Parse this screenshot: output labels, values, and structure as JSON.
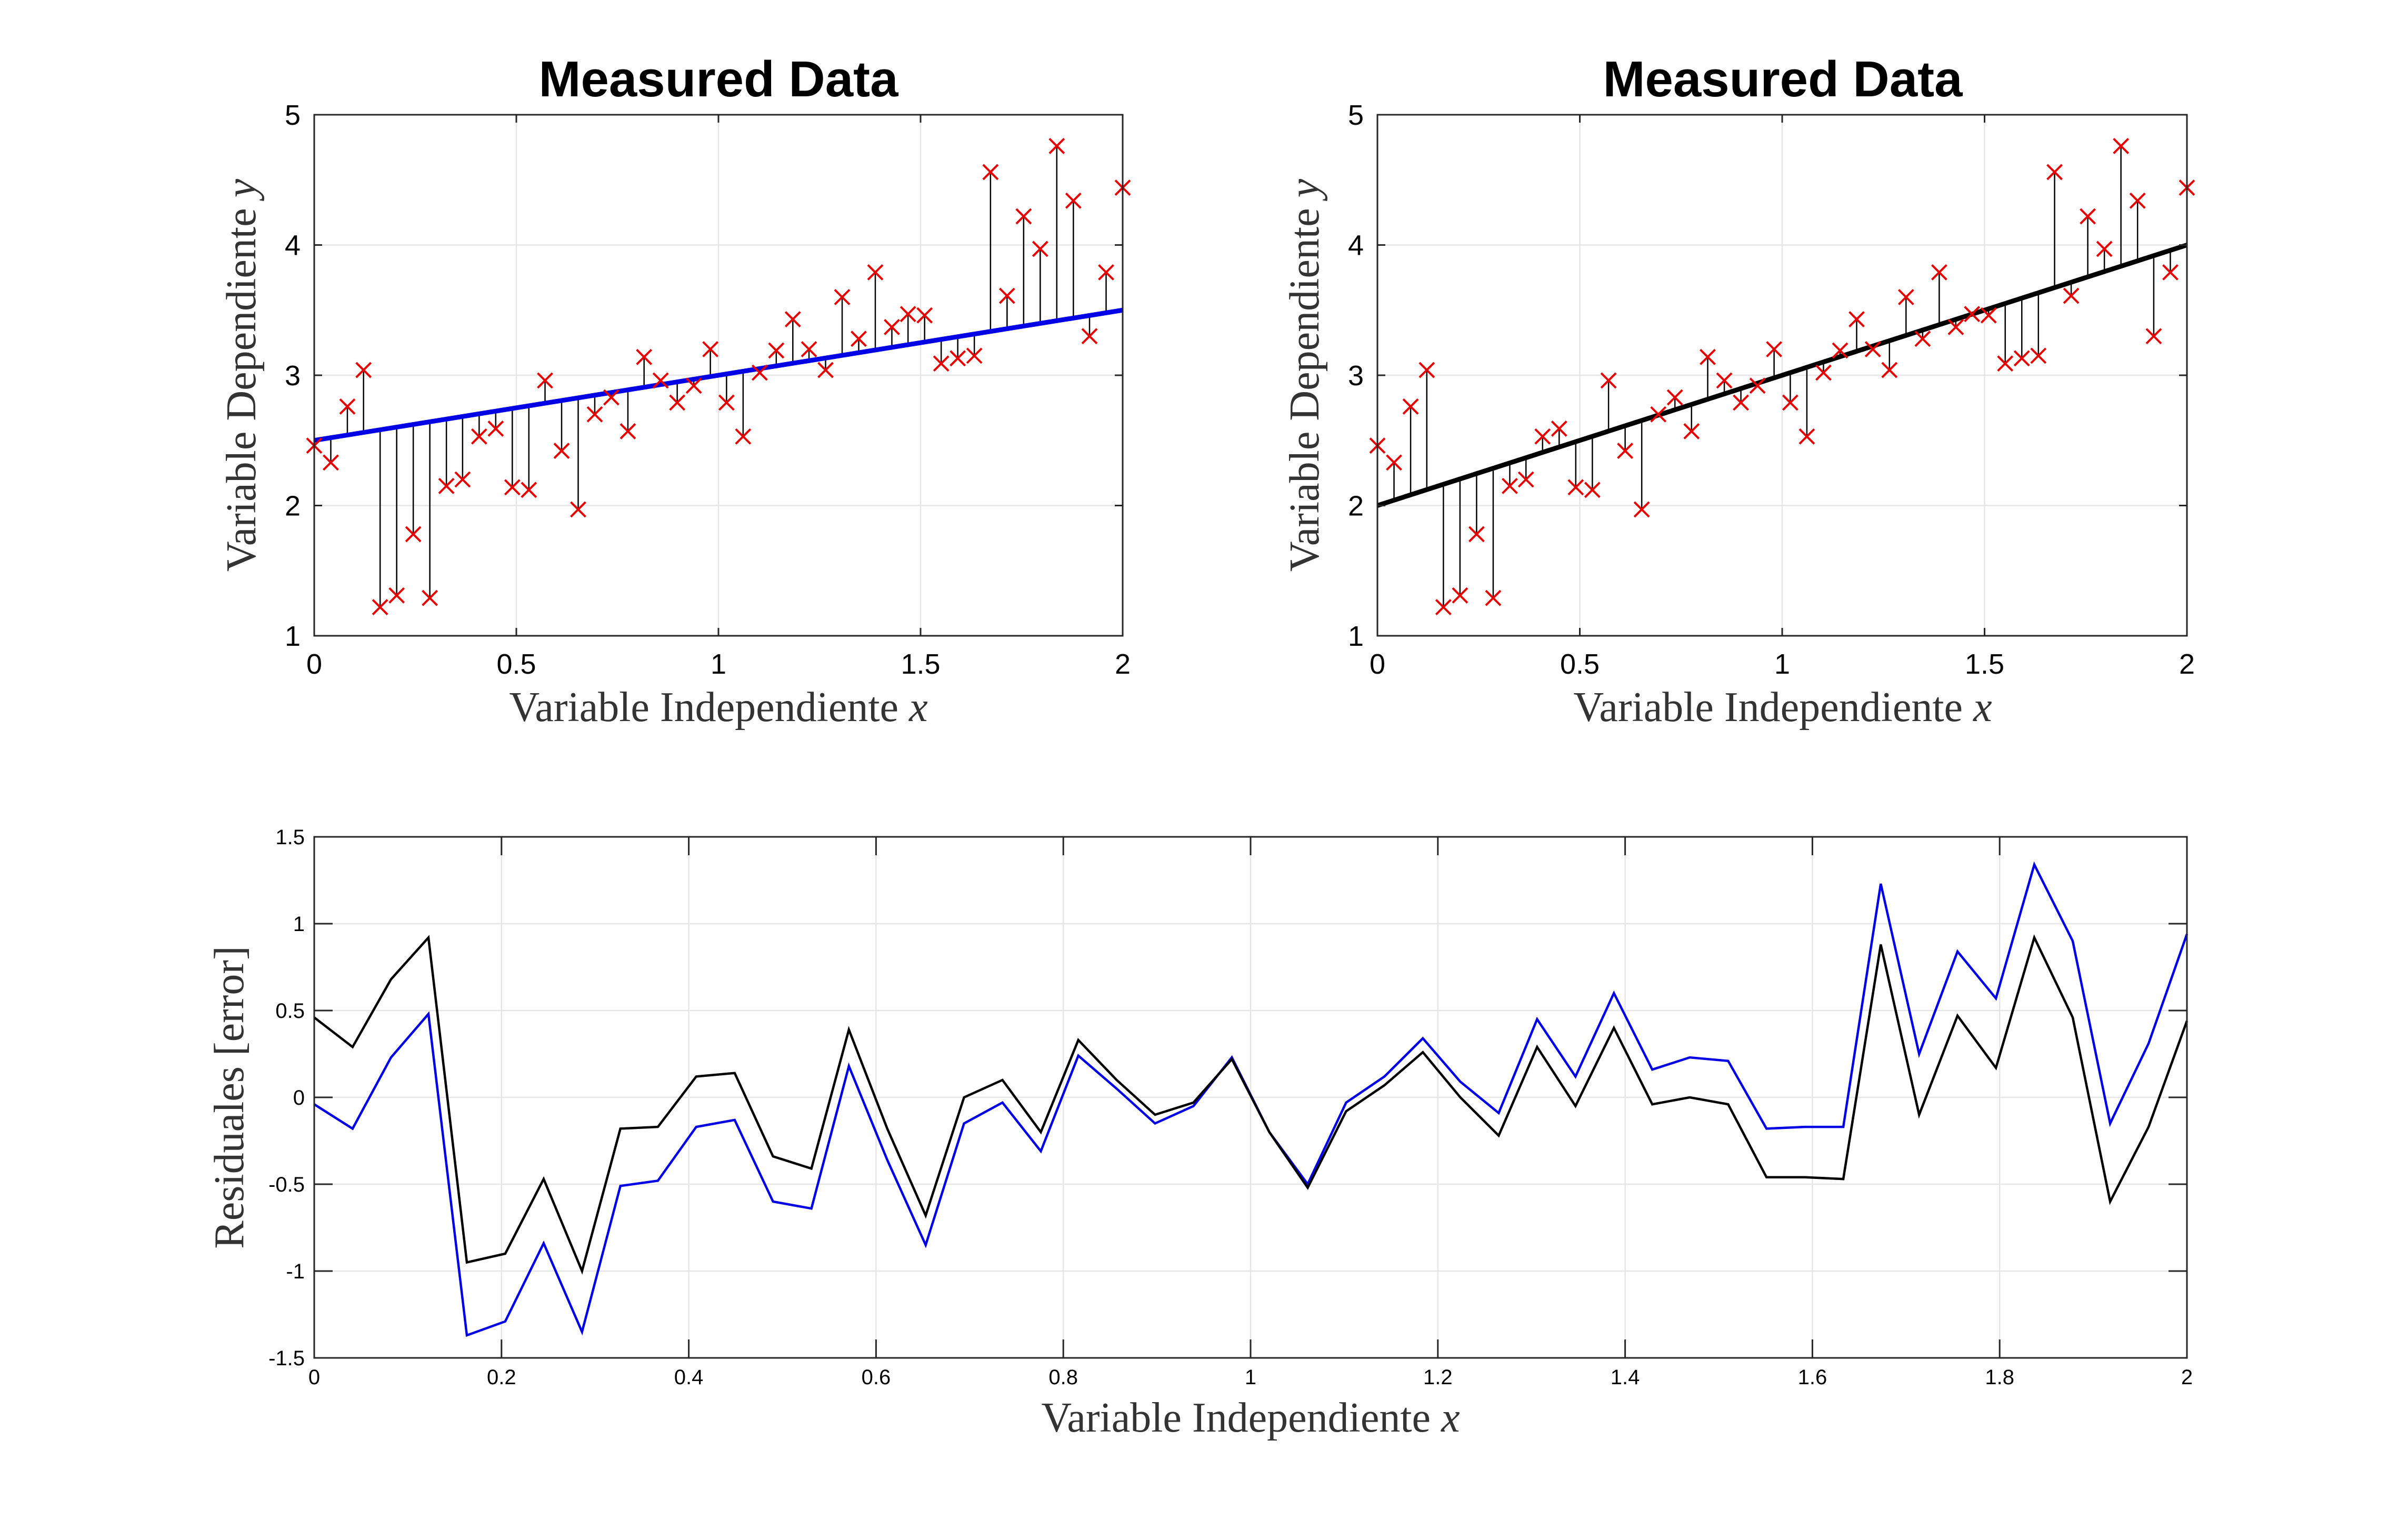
{
  "chart_data": [
    {
      "type": "scatter",
      "title": "Measured Data",
      "xlabel": "Variable Independiente x",
      "ylabel": "Variable Dependiente y",
      "xlim": [
        0,
        2
      ],
      "ylim": [
        1,
        5
      ],
      "xticks": [
        "0",
        "0.5",
        "1",
        "1.5",
        "2"
      ],
      "yticks": [
        "1",
        "2",
        "3",
        "4",
        "5"
      ],
      "grid": true,
      "series": [
        {
          "x": [
            0,
            0.041,
            0.082,
            0.122,
            0.163,
            0.204,
            0.245,
            0.286,
            0.327,
            0.367,
            0.408,
            0.449,
            0.49,
            0.531,
            0.571,
            0.612,
            0.653,
            0.694,
            0.735,
            0.776,
            0.816,
            0.857,
            0.898,
            0.939,
            0.98,
            1.02,
            1.061,
            1.102,
            1.143,
            1.184,
            1.224,
            1.265,
            1.306,
            1.347,
            1.388,
            1.429,
            1.469,
            1.51,
            1.551,
            1.592,
            1.633,
            1.673,
            1.714,
            1.755,
            1.796,
            1.837,
            1.878,
            1.918,
            1.959,
            2
          ],
          "y": [
            2.46,
            2.33,
            2.76,
            3.04,
            1.22,
            1.31,
            1.78,
            1.29,
            2.15,
            2.2,
            2.53,
            2.59,
            2.14,
            2.12,
            2.96,
            2.42,
            1.97,
            2.7,
            2.83,
            2.57,
            3.14,
            2.96,
            2.79,
            2.92,
            3.2,
            2.79,
            2.53,
            3.02,
            3.19,
            3.43,
            3.2,
            3.04,
            3.6,
            3.28,
            3.79,
            3.37,
            3.47,
            3.46,
            3.09,
            3.13,
            3.15,
            4.56,
            3.61,
            4.22,
            3.97,
            4.76,
            4.34,
            3.3,
            3.79,
            4.44
          ]
        },
        {
          "x": [
            0,
            2
          ],
          "y": [
            2.5,
            3.5
          ]
        }
      ],
      "colors": {
        "points": "#e60000",
        "fit": "#0000e6",
        "residual": "#000000"
      }
    },
    {
      "type": "scatter",
      "title": "Measured Data",
      "xlabel": "Variable Independiente x",
      "ylabel": "Variable Dependiente y",
      "xlim": [
        0,
        2
      ],
      "ylim": [
        1,
        5
      ],
      "xticks": [
        "0",
        "0.5",
        "1",
        "1.5",
        "2"
      ],
      "yticks": [
        "1",
        "2",
        "3",
        "4",
        "5"
      ],
      "grid": true,
      "series": [
        {
          "x": [
            0,
            0.041,
            0.082,
            0.122,
            0.163,
            0.204,
            0.245,
            0.286,
            0.327,
            0.367,
            0.408,
            0.449,
            0.49,
            0.531,
            0.571,
            0.612,
            0.653,
            0.694,
            0.735,
            0.776,
            0.816,
            0.857,
            0.898,
            0.939,
            0.98,
            1.02,
            1.061,
            1.102,
            1.143,
            1.184,
            1.224,
            1.265,
            1.306,
            1.347,
            1.388,
            1.429,
            1.469,
            1.51,
            1.551,
            1.592,
            1.633,
            1.673,
            1.714,
            1.755,
            1.796,
            1.837,
            1.878,
            1.918,
            1.959,
            2
          ],
          "y": [
            2.46,
            2.33,
            2.76,
            3.04,
            1.22,
            1.31,
            1.78,
            1.29,
            2.15,
            2.2,
            2.53,
            2.59,
            2.14,
            2.12,
            2.96,
            2.42,
            1.97,
            2.7,
            2.83,
            2.57,
            3.14,
            2.96,
            2.79,
            2.92,
            3.2,
            2.79,
            2.53,
            3.02,
            3.19,
            3.43,
            3.2,
            3.04,
            3.6,
            3.28,
            3.79,
            3.37,
            3.47,
            3.46,
            3.09,
            3.13,
            3.15,
            4.56,
            3.61,
            4.22,
            3.97,
            4.76,
            4.34,
            3.3,
            3.79,
            4.44
          ]
        },
        {
          "x": [
            0,
            2
          ],
          "y": [
            2,
            4
          ]
        }
      ],
      "colors": {
        "points": "#e60000",
        "fit": "#000000",
        "residual": "#000000"
      }
    },
    {
      "type": "line",
      "title": "",
      "xlabel": "Variable Independiente x",
      "ylabel": "Residuales [error]",
      "xlim": [
        0,
        2
      ],
      "ylim": [
        -1.5,
        1.5
      ],
      "xticks": [
        "0",
        "0.2",
        "0.4",
        "0.6",
        "0.8",
        "1",
        "1.2",
        "1.4",
        "1.6",
        "1.8",
        "2"
      ],
      "yticks": [
        "-1.5",
        "-1",
        "-0.5",
        "0",
        "0.5",
        "1",
        "1.5"
      ],
      "grid": true,
      "x": [
        0,
        0.041,
        0.082,
        0.122,
        0.163,
        0.204,
        0.245,
        0.286,
        0.327,
        0.367,
        0.408,
        0.449,
        0.49,
        0.531,
        0.571,
        0.612,
        0.653,
        0.694,
        0.735,
        0.776,
        0.816,
        0.857,
        0.898,
        0.939,
        0.98,
        1.02,
        1.061,
        1.102,
        1.143,
        1.184,
        1.224,
        1.265,
        1.306,
        1.347,
        1.388,
        1.429,
        1.469,
        1.51,
        1.551,
        1.592,
        1.633,
        1.673,
        1.714,
        1.755,
        1.796,
        1.837,
        1.878,
        1.918,
        1.959,
        2
      ],
      "series": [
        {
          "color": "#0000e6",
          "values": [
            -0.04,
            -0.18,
            0.23,
            0.48,
            -1.37,
            -1.29,
            -0.84,
            -1.35,
            -0.51,
            -0.48,
            -0.17,
            -0.13,
            -0.6,
            -0.64,
            0.18,
            -0.36,
            -0.85,
            -0.15,
            -0.03,
            -0.31,
            0.24,
            0.05,
            -0.15,
            -0.05,
            0.23,
            -0.2,
            -0.5,
            -0.03,
            0.12,
            0.34,
            0.09,
            -0.09,
            0.45,
            0.12,
            0.6,
            0.16,
            0.23,
            0.21,
            -0.18,
            -0.17,
            -0.17,
            1.23,
            0.25,
            0.84,
            0.57,
            1.34,
            0.9,
            -0.15,
            0.31,
            0.94
          ]
        },
        {
          "color": "#000000",
          "values": [
            0.46,
            0.29,
            0.68,
            0.92,
            -0.95,
            -0.9,
            -0.47,
            -1.0,
            -0.18,
            -0.17,
            0.12,
            0.14,
            -0.34,
            -0.41,
            0.39,
            -0.18,
            -0.68,
            0.0,
            0.1,
            -0.2,
            0.33,
            0.1,
            -0.1,
            -0.03,
            0.22,
            -0.2,
            -0.52,
            -0.08,
            0.07,
            0.26,
            0.0,
            -0.22,
            0.29,
            -0.05,
            0.4,
            -0.04,
            0.0,
            -0.04,
            -0.46,
            -0.46,
            -0.47,
            0.88,
            -0.1,
            0.47,
            0.17,
            0.92,
            0.46,
            -0.6,
            -0.17,
            0.44
          ]
        }
      ]
    }
  ]
}
